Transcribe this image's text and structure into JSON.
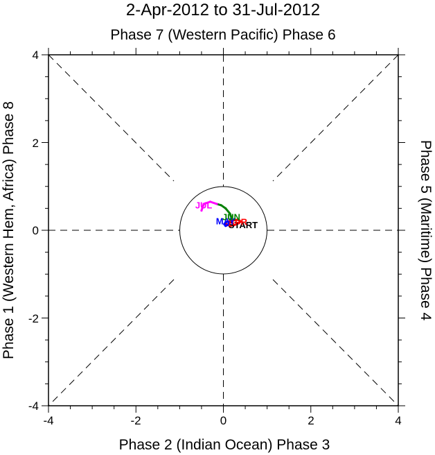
{
  "chart_data": {
    "type": "line",
    "title": "2-Apr-2012 to 31-Jul-2012",
    "top_label": "Phase 7 (Western Pacific) Phase 6",
    "bottom_label": "Phase 2 (Indian Ocean) Phase 3",
    "left_label": "Phase 1 (Western Hem, Africa) Phase 8",
    "right_label": "Phase 5 (Maritime) Phase 4",
    "xlim": [
      -4,
      4
    ],
    "ylim": [
      -4,
      4
    ],
    "x_ticks": [
      -4,
      -2,
      0,
      2,
      4
    ],
    "y_ticks": [
      -4,
      -2,
      0,
      2,
      4
    ],
    "x_tick_labels": [
      "-4",
      "-2",
      "0",
      "2",
      "4"
    ],
    "y_tick_labels": [
      "-4",
      "-2",
      "0",
      "2",
      "4"
    ],
    "unit_circle_radius": 1,
    "grid": "dashed phase-division lines",
    "series": [
      {
        "color": "#ff0000",
        "x": [
          0.05,
          0.15,
          0.25,
          0.35,
          0.4,
          0.32,
          0.2,
          0.1
        ],
        "y": [
          0.15,
          0.1,
          0.12,
          0.16,
          0.2,
          0.24,
          0.22,
          0.2
        ]
      },
      {
        "color": "#0000ff",
        "x": [
          0.1,
          0.05,
          0.02,
          0.05,
          0.1,
          0.15,
          0.2
        ],
        "y": [
          0.2,
          0.18,
          0.14,
          0.1,
          0.12,
          0.18,
          0.24
        ]
      },
      {
        "color": "#008000",
        "x": [
          0.2,
          0.15,
          0.05,
          -0.05,
          -0.15
        ],
        "y": [
          0.24,
          0.38,
          0.5,
          0.57,
          0.6
        ]
      },
      {
        "color": "#ff00ff",
        "x": [
          -0.15,
          -0.3,
          -0.45,
          -0.5
        ],
        "y": [
          0.6,
          0.65,
          0.6,
          0.45
        ]
      }
    ],
    "annotations": [
      {
        "text": "START",
        "x": 0.45,
        "y": 0.1,
        "color": "#000000"
      },
      {
        "text": "APR",
        "x": 0.33,
        "y": 0.17,
        "color": "#ff0000"
      },
      {
        "text": "MAY",
        "x": 0.05,
        "y": 0.19,
        "color": "#0000ff"
      },
      {
        "text": "JUN",
        "x": 0.18,
        "y": 0.28,
        "color": "#008000"
      },
      {
        "text": "JUL",
        "x": -0.45,
        "y": 0.55,
        "color": "#ff00ff"
      }
    ]
  }
}
